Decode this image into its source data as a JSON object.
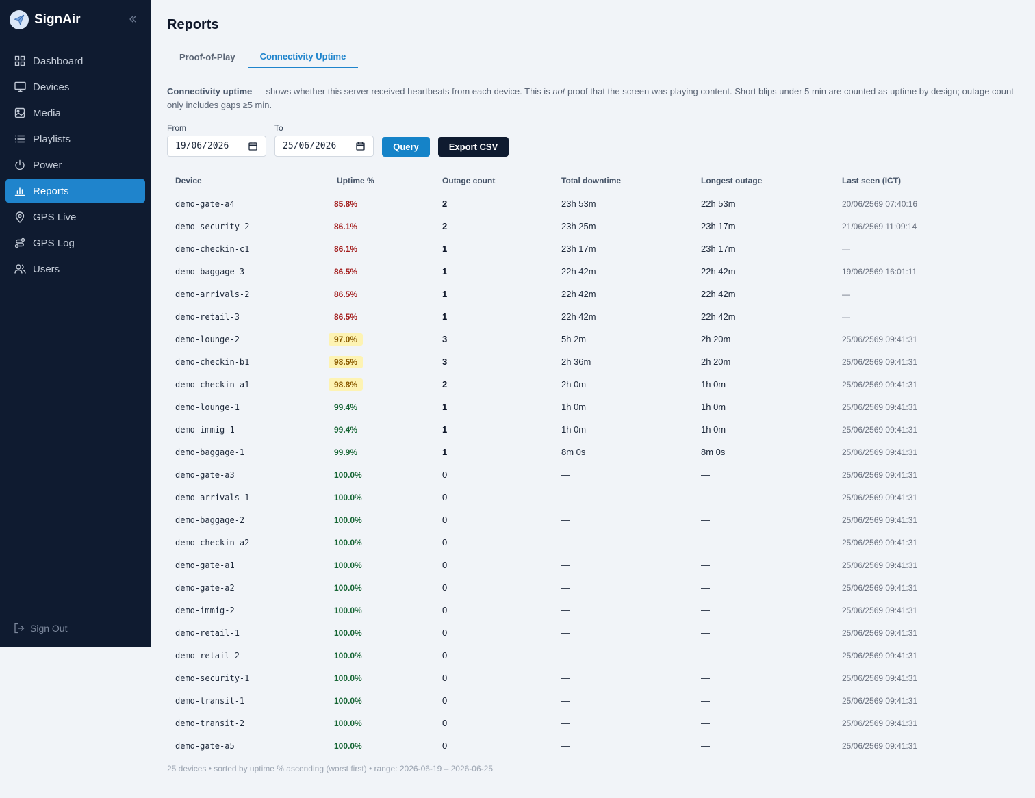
{
  "app": {
    "name": "SignAir"
  },
  "sidebar": {
    "items": [
      {
        "label": "Dashboard",
        "icon": "grid-icon",
        "active": false
      },
      {
        "label": "Devices",
        "icon": "monitor-icon",
        "active": false
      },
      {
        "label": "Media",
        "icon": "image-icon",
        "active": false
      },
      {
        "label": "Playlists",
        "icon": "list-icon",
        "active": false
      },
      {
        "label": "Power",
        "icon": "power-icon",
        "active": false
      },
      {
        "label": "Reports",
        "icon": "bar-chart-icon",
        "active": true
      },
      {
        "label": "GPS Live",
        "icon": "map-pin-icon",
        "active": false
      },
      {
        "label": "GPS Log",
        "icon": "route-icon",
        "active": false
      },
      {
        "label": "Users",
        "icon": "users-icon",
        "active": false
      }
    ],
    "sign_out": "Sign Out"
  },
  "page": {
    "title": "Reports",
    "tabs": [
      {
        "label": "Proof-of-Play",
        "active": false
      },
      {
        "label": "Connectivity Uptime",
        "active": true
      }
    ],
    "description": {
      "lead": "Connectivity uptime",
      "part1": " — shows whether this server received heartbeats from each device. This is ",
      "emph": "not",
      "part2": " proof that the screen was playing content. Short blips under 5 min are counted as uptime by design; outage count only includes gaps ≥5 min."
    },
    "filters": {
      "from_label": "From",
      "from_value": "19/06/2026",
      "to_label": "To",
      "to_value": "25/06/2026",
      "query_label": "Query",
      "export_label": "Export CSV"
    }
  },
  "table": {
    "headers": [
      "Device",
      "Uptime %",
      "Outage count",
      "Total downtime",
      "Longest outage",
      "Last seen (ICT)"
    ],
    "rows": [
      {
        "device": "demo-gate-a4",
        "uptime": "85.8%",
        "status": "bad",
        "outages": "2",
        "downtime": "23h 53m",
        "longest": "22h 53m",
        "last_seen": "20/06/2569 07:40:16"
      },
      {
        "device": "demo-security-2",
        "uptime": "86.1%",
        "status": "bad",
        "outages": "2",
        "downtime": "23h 25m",
        "longest": "23h 17m",
        "last_seen": "21/06/2569 11:09:14"
      },
      {
        "device": "demo-checkin-c1",
        "uptime": "86.1%",
        "status": "bad",
        "outages": "1",
        "downtime": "23h 17m",
        "longest": "23h 17m",
        "last_seen": "—"
      },
      {
        "device": "demo-baggage-3",
        "uptime": "86.5%",
        "status": "bad",
        "outages": "1",
        "downtime": "22h 42m",
        "longest": "22h 42m",
        "last_seen": "19/06/2569 16:01:11"
      },
      {
        "device": "demo-arrivals-2",
        "uptime": "86.5%",
        "status": "bad",
        "outages": "1",
        "downtime": "22h 42m",
        "longest": "22h 42m",
        "last_seen": "—"
      },
      {
        "device": "demo-retail-3",
        "uptime": "86.5%",
        "status": "bad",
        "outages": "1",
        "downtime": "22h 42m",
        "longest": "22h 42m",
        "last_seen": "—"
      },
      {
        "device": "demo-lounge-2",
        "uptime": "97.0%",
        "status": "warn",
        "outages": "3",
        "downtime": "5h 2m",
        "longest": "2h 20m",
        "last_seen": "25/06/2569 09:41:31"
      },
      {
        "device": "demo-checkin-b1",
        "uptime": "98.5%",
        "status": "warn",
        "outages": "3",
        "downtime": "2h 36m",
        "longest": "2h 20m",
        "last_seen": "25/06/2569 09:41:31"
      },
      {
        "device": "demo-checkin-a1",
        "uptime": "98.8%",
        "status": "warn",
        "outages": "2",
        "downtime": "2h 0m",
        "longest": "1h 0m",
        "last_seen": "25/06/2569 09:41:31"
      },
      {
        "device": "demo-lounge-1",
        "uptime": "99.4%",
        "status": "good",
        "outages": "1",
        "downtime": "1h 0m",
        "longest": "1h 0m",
        "last_seen": "25/06/2569 09:41:31"
      },
      {
        "device": "demo-immig-1",
        "uptime": "99.4%",
        "status": "good",
        "outages": "1",
        "downtime": "1h 0m",
        "longest": "1h 0m",
        "last_seen": "25/06/2569 09:41:31"
      },
      {
        "device": "demo-baggage-1",
        "uptime": "99.9%",
        "status": "good",
        "outages": "1",
        "downtime": "8m 0s",
        "longest": "8m 0s",
        "last_seen": "25/06/2569 09:41:31"
      },
      {
        "device": "demo-gate-a3",
        "uptime": "100.0%",
        "status": "good",
        "outages": "0",
        "downtime": "—",
        "longest": "—",
        "last_seen": "25/06/2569 09:41:31"
      },
      {
        "device": "demo-arrivals-1",
        "uptime": "100.0%",
        "status": "good",
        "outages": "0",
        "downtime": "—",
        "longest": "—",
        "last_seen": "25/06/2569 09:41:31"
      },
      {
        "device": "demo-baggage-2",
        "uptime": "100.0%",
        "status": "good",
        "outages": "0",
        "downtime": "—",
        "longest": "—",
        "last_seen": "25/06/2569 09:41:31"
      },
      {
        "device": "demo-checkin-a2",
        "uptime": "100.0%",
        "status": "good",
        "outages": "0",
        "downtime": "—",
        "longest": "—",
        "last_seen": "25/06/2569 09:41:31"
      },
      {
        "device": "demo-gate-a1",
        "uptime": "100.0%",
        "status": "good",
        "outages": "0",
        "downtime": "—",
        "longest": "—",
        "last_seen": "25/06/2569 09:41:31"
      },
      {
        "device": "demo-gate-a2",
        "uptime": "100.0%",
        "status": "good",
        "outages": "0",
        "downtime": "—",
        "longest": "—",
        "last_seen": "25/06/2569 09:41:31"
      },
      {
        "device": "demo-immig-2",
        "uptime": "100.0%",
        "status": "good",
        "outages": "0",
        "downtime": "—",
        "longest": "—",
        "last_seen": "25/06/2569 09:41:31"
      },
      {
        "device": "demo-retail-1",
        "uptime": "100.0%",
        "status": "good",
        "outages": "0",
        "downtime": "—",
        "longest": "—",
        "last_seen": "25/06/2569 09:41:31"
      },
      {
        "device": "demo-retail-2",
        "uptime": "100.0%",
        "status": "good",
        "outages": "0",
        "downtime": "—",
        "longest": "—",
        "last_seen": "25/06/2569 09:41:31"
      },
      {
        "device": "demo-security-1",
        "uptime": "100.0%",
        "status": "good",
        "outages": "0",
        "downtime": "—",
        "longest": "—",
        "last_seen": "25/06/2569 09:41:31"
      },
      {
        "device": "demo-transit-1",
        "uptime": "100.0%",
        "status": "good",
        "outages": "0",
        "downtime": "—",
        "longest": "—",
        "last_seen": "25/06/2569 09:41:31"
      },
      {
        "device": "demo-transit-2",
        "uptime": "100.0%",
        "status": "good",
        "outages": "0",
        "downtime": "—",
        "longest": "—",
        "last_seen": "25/06/2569 09:41:31"
      },
      {
        "device": "demo-gate-a5",
        "uptime": "100.0%",
        "status": "good",
        "outages": "0",
        "downtime": "—",
        "longest": "—",
        "last_seen": "25/06/2569 09:41:31"
      }
    ]
  },
  "footer": "25 devices • sorted by uptime % ascending (worst first) • range: 2026-06-19 – 2026-06-25",
  "colors": {
    "sidebar_bg": "#0f1b30",
    "accent": "#1f84cc",
    "bad": "#a31d1d",
    "warn_bg": "#fdf3b3",
    "good": "#166534"
  }
}
